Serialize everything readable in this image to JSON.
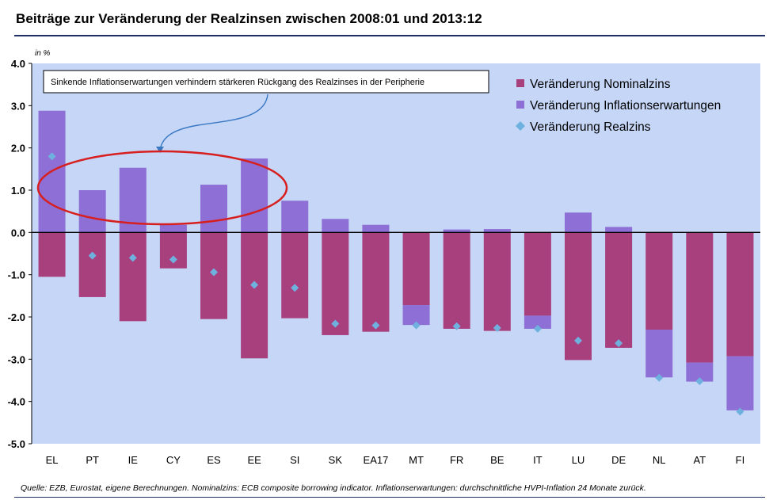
{
  "title": "Beiträge zur Veränderung der Realzinsen zwischen 2008:01 und 2013:12",
  "footer": "Quelle: EZB, Eurostat, eigene Berechnungen. Nominalzins: ECB composite borrowing indicator. Inflationserwartungen: durchschnittliche HVPI-Inflation 24 Monate zurück.",
  "chart_data": {
    "type": "bar",
    "unit_label": "in %",
    "annotation": "Sinkende Inflationserwartungen verhindern stärkeren Rückgang des Realzinses in der Peripherie",
    "categories": [
      "EL",
      "PT",
      "IE",
      "CY",
      "ES",
      "EE",
      "SI",
      "SK",
      "EA17",
      "MT",
      "FR",
      "BE",
      "IT",
      "LU",
      "DE",
      "NL",
      "AT",
      "FI"
    ],
    "series": [
      {
        "name": "Veränderung Nominalzins",
        "color": "#a9407e",
        "values": [
          -1.05,
          -1.53,
          -2.1,
          -0.85,
          -2.05,
          -2.98,
          -2.03,
          -2.43,
          -2.35,
          -1.72,
          -2.28,
          -2.33,
          -1.97,
          -3.02,
          -2.73,
          -2.3,
          -3.08,
          -2.93
        ]
      },
      {
        "name": "Veränderung Inflationserwartungen",
        "color": "#8e6fd6",
        "values": [
          2.88,
          1.0,
          1.53,
          0.18,
          1.13,
          1.75,
          0.75,
          0.32,
          0.18,
          -0.47,
          0.07,
          0.08,
          -0.31,
          0.47,
          0.13,
          -1.13,
          -0.45,
          -1.28
        ]
      },
      {
        "name": "Veränderung Realzins",
        "color": "#6fb1de",
        "marker": "diamond",
        "values": [
          1.8,
          -0.55,
          -0.6,
          -0.64,
          -0.94,
          -1.24,
          -1.31,
          -2.16,
          -2.2,
          -2.2,
          -2.22,
          -2.26,
          -2.28,
          -2.56,
          -2.62,
          -3.44,
          -3.52,
          -4.24
        ]
      }
    ],
    "ylim": [
      -5.0,
      4.0
    ],
    "yticks": [
      "4.0",
      "3.0",
      "2.0",
      "1.0",
      "0.0",
      "-1.0",
      "-2.0",
      "-3.0",
      "-4.0",
      "-5.0"
    ],
    "legend": "top-right",
    "grid": false,
    "plot_background": "#c5d6f7"
  }
}
